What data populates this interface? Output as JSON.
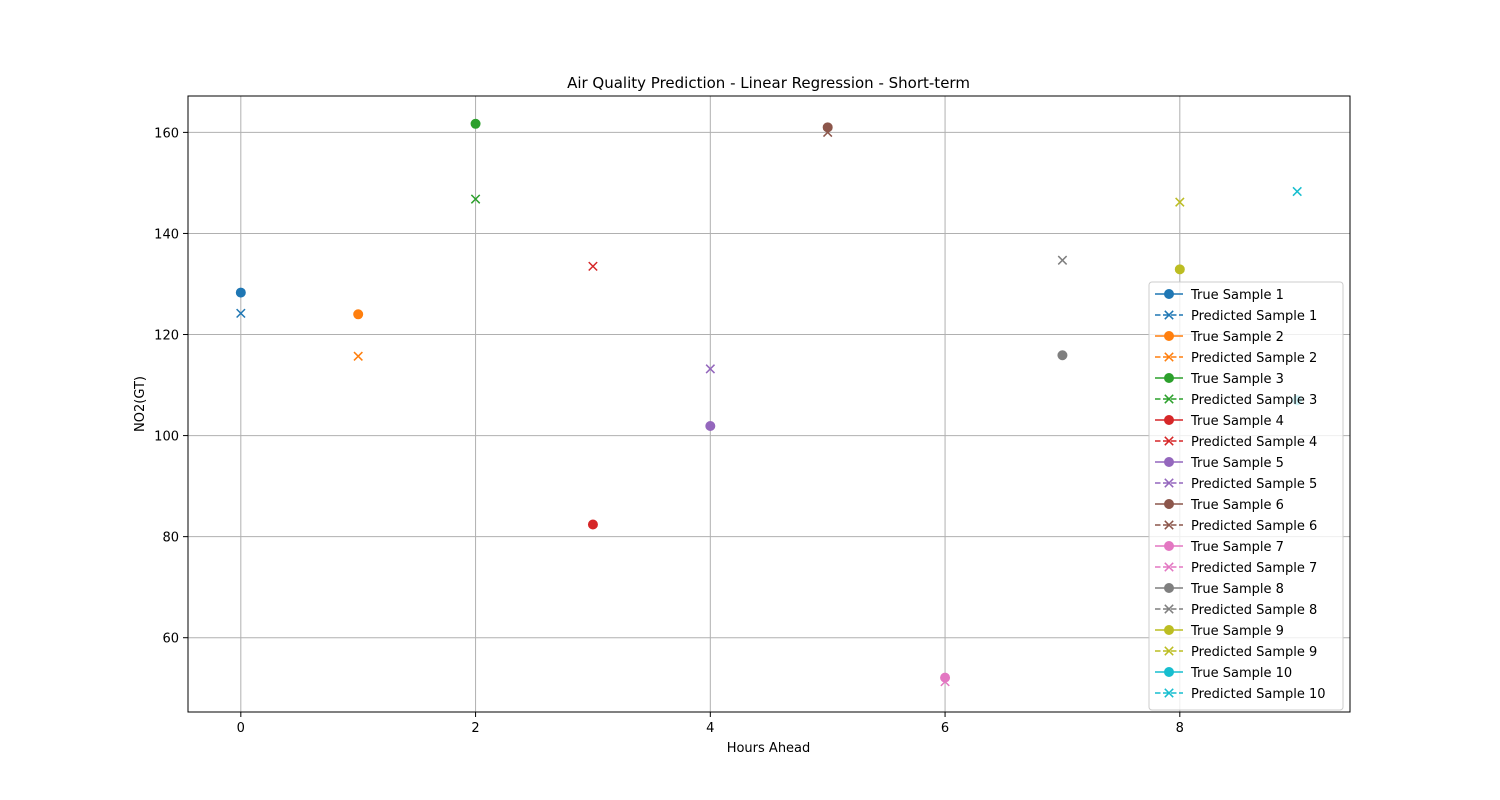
{
  "chart_data": {
    "type": "scatter",
    "title": "Air Quality Prediction - Linear Regression  - Short-term",
    "xlabel": "Hours Ahead",
    "ylabel": "NO2(GT)",
    "xlim": [
      -0.45,
      9.45
    ],
    "ylim": [
      45.3,
      167.2
    ],
    "xticks": [
      0,
      2,
      4,
      6,
      8
    ],
    "yticks": [
      60,
      80,
      100,
      120,
      140,
      160
    ],
    "grid": true,
    "legend_position": "right",
    "series": [
      {
        "name": "True Sample 1",
        "marker": "circle",
        "linestyle": "solid",
        "color": "#1f77b4",
        "x": [
          0
        ],
        "y": [
          128.3
        ]
      },
      {
        "name": "Predicted Sample 1",
        "marker": "x",
        "linestyle": "dashed",
        "color": "#1f77b4",
        "x": [
          0
        ],
        "y": [
          124.2
        ]
      },
      {
        "name": "True Sample 2",
        "marker": "circle",
        "linestyle": "solid",
        "color": "#ff7f0e",
        "x": [
          1
        ],
        "y": [
          124.0
        ]
      },
      {
        "name": "Predicted Sample 2",
        "marker": "x",
        "linestyle": "dashed",
        "color": "#ff7f0e",
        "x": [
          1
        ],
        "y": [
          115.7
        ]
      },
      {
        "name": "True Sample 3",
        "marker": "circle",
        "linestyle": "solid",
        "color": "#2ca02c",
        "x": [
          2
        ],
        "y": [
          161.7
        ]
      },
      {
        "name": "Predicted Sample 3",
        "marker": "x",
        "linestyle": "dashed",
        "color": "#2ca02c",
        "x": [
          2
        ],
        "y": [
          146.8
        ]
      },
      {
        "name": "True Sample 4",
        "marker": "circle",
        "linestyle": "solid",
        "color": "#d62728",
        "x": [
          3
        ],
        "y": [
          82.4
        ]
      },
      {
        "name": "Predicted Sample 4",
        "marker": "x",
        "linestyle": "dashed",
        "color": "#d62728",
        "x": [
          3
        ],
        "y": [
          133.5
        ]
      },
      {
        "name": "True Sample 5",
        "marker": "circle",
        "linestyle": "solid",
        "color": "#9467bd",
        "x": [
          4
        ],
        "y": [
          101.9
        ]
      },
      {
        "name": "Predicted Sample 5",
        "marker": "x",
        "linestyle": "dashed",
        "color": "#9467bd",
        "x": [
          4
        ],
        "y": [
          113.2
        ]
      },
      {
        "name": "True Sample 6",
        "marker": "circle",
        "linestyle": "solid",
        "color": "#8c564b",
        "x": [
          5
        ],
        "y": [
          161.0
        ]
      },
      {
        "name": "Predicted Sample 6",
        "marker": "x",
        "linestyle": "dashed",
        "color": "#8c564b",
        "x": [
          5
        ],
        "y": [
          160.0
        ]
      },
      {
        "name": "True Sample 7",
        "marker": "circle",
        "linestyle": "solid",
        "color": "#e377c2",
        "x": [
          6
        ],
        "y": [
          52.1
        ]
      },
      {
        "name": "Predicted Sample 7",
        "marker": "x",
        "linestyle": "dashed",
        "color": "#e377c2",
        "x": [
          6
        ],
        "y": [
          51.3
        ]
      },
      {
        "name": "True Sample 8",
        "marker": "circle",
        "linestyle": "solid",
        "color": "#7f7f7f",
        "x": [
          7
        ],
        "y": [
          115.9
        ]
      },
      {
        "name": "Predicted Sample 8",
        "marker": "x",
        "linestyle": "dashed",
        "color": "#7f7f7f",
        "x": [
          7
        ],
        "y": [
          134.7
        ]
      },
      {
        "name": "True Sample 9",
        "marker": "circle",
        "linestyle": "solid",
        "color": "#bcbd22",
        "x": [
          8
        ],
        "y": [
          132.9
        ]
      },
      {
        "name": "Predicted Sample 9",
        "marker": "x",
        "linestyle": "dashed",
        "color": "#bcbd22",
        "x": [
          8
        ],
        "y": [
          146.2
        ]
      },
      {
        "name": "True Sample 10",
        "marker": "circle",
        "linestyle": "solid",
        "color": "#17becf",
        "x": [
          9
        ],
        "y": [
          107.0
        ]
      },
      {
        "name": "Predicted Sample 10",
        "marker": "x",
        "linestyle": "dashed",
        "color": "#17becf",
        "x": [
          9
        ],
        "y": [
          148.3
        ]
      }
    ]
  }
}
